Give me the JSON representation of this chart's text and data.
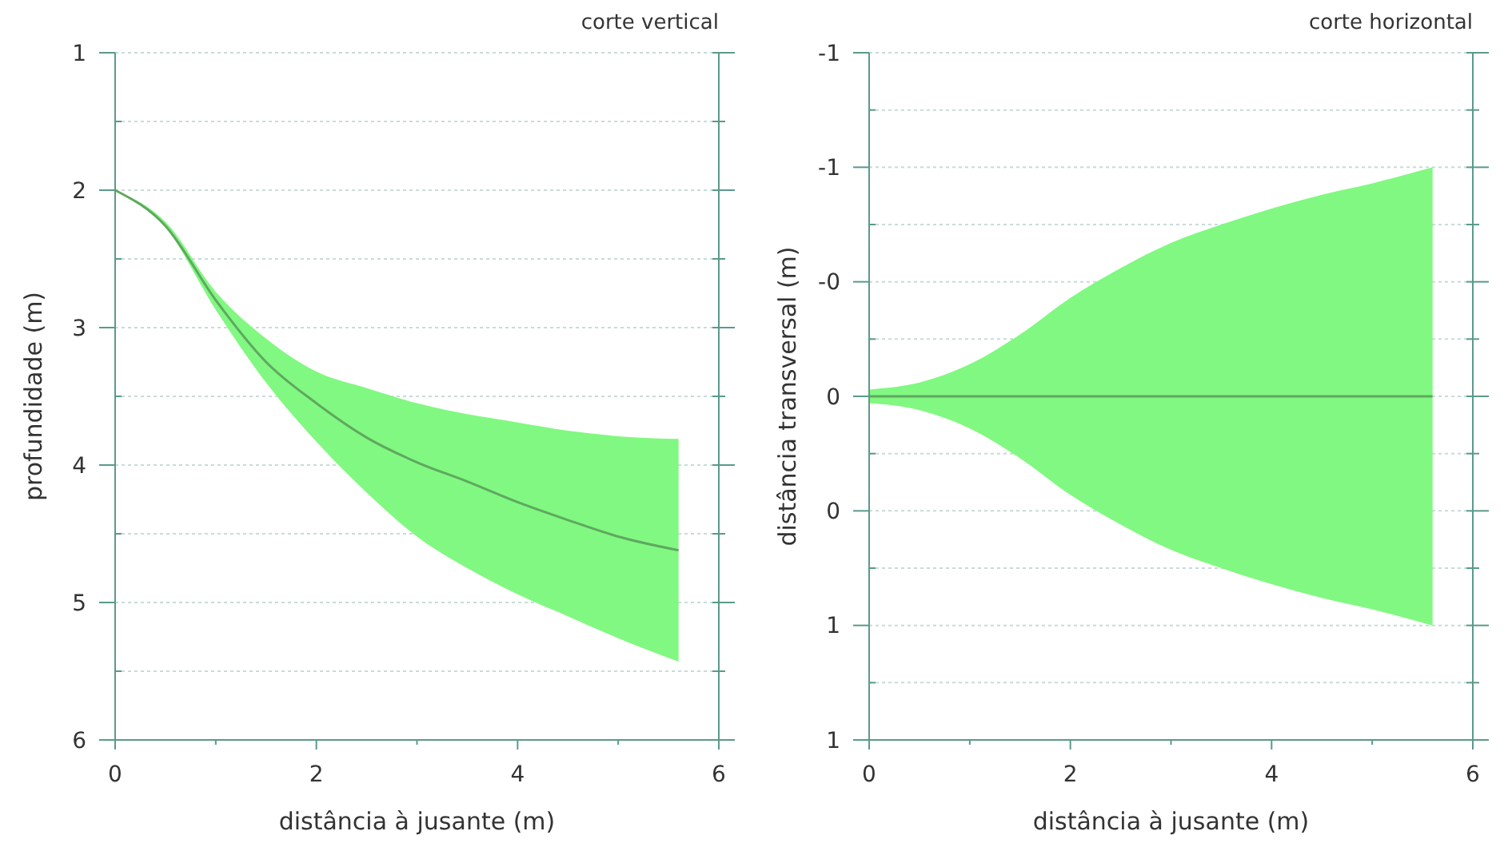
{
  "chart_data": [
    {
      "type": "line",
      "title": "corte vertical",
      "xlabel": "distância à jusante (m)",
      "ylabel": "profundidade (m)",
      "x": [
        0,
        0.5,
        1,
        1.5,
        2,
        2.5,
        3,
        3.5,
        4,
        4.5,
        5,
        5.6
      ],
      "xlim": [
        0,
        6
      ],
      "xticks": [
        0,
        {
          "value": 1,
          "label": null
        },
        2,
        {
          "value": 3,
          "label": null
        },
        4,
        {
          "value": 5,
          "label": null
        },
        6
      ],
      "ylim": [
        6,
        1
      ],
      "yticks": [
        1,
        {
          "value": 1.5,
          "label": null
        },
        2,
        {
          "value": 2.5,
          "label": null
        },
        3,
        {
          "value": 3.5,
          "label": null
        },
        4,
        {
          "value": 4.5,
          "label": null
        },
        5,
        {
          "value": 5.5,
          "label": null
        },
        6
      ],
      "grid": "y",
      "line_style": "solid",
      "series": [
        {
          "color": "#5fa85f",
          "values": [
            2.0,
            2.26,
            2.8,
            3.25,
            3.55,
            3.8,
            3.98,
            4.12,
            4.27,
            4.4,
            4.52,
            4.62
          ],
          "upper": [
            2.0,
            2.23,
            2.74,
            3.08,
            3.32,
            3.44,
            3.55,
            3.63,
            3.69,
            3.75,
            3.79,
            3.81
          ],
          "lower": [
            2.0,
            2.27,
            2.87,
            3.4,
            3.83,
            4.2,
            4.52,
            4.75,
            4.94,
            5.1,
            5.26,
            5.43
          ]
        }
      ]
    },
    {
      "type": "line",
      "title": "corte horizontal",
      "xlabel": "distância à jusante (m)",
      "ylabel": "distância transversal (m)",
      "x": [
        0,
        0.5,
        1,
        1.5,
        2,
        2.5,
        3,
        3.5,
        4,
        4.5,
        5,
        5.6
      ],
      "xlim": [
        0,
        6
      ],
      "xticks": [
        0,
        {
          "value": 1,
          "label": null
        },
        2,
        {
          "value": 3,
          "label": null
        },
        4,
        {
          "value": 5,
          "label": null
        },
        6
      ],
      "ylim": [
        1.5,
        -1.5
      ],
      "yticks": [
        {
          "value": -1.5,
          "label": "-1"
        },
        {
          "value": -1.25,
          "label": null
        },
        {
          "value": -1,
          "label": "-1"
        },
        {
          "value": -0.75,
          "label": null
        },
        {
          "value": -0.5,
          "label": "-0"
        },
        {
          "value": -0.25,
          "label": null
        },
        0,
        {
          "value": 0.25,
          "label": null
        },
        {
          "value": 0.5,
          "label": "0"
        },
        {
          "value": 0.75,
          "label": null
        },
        1,
        {
          "value": 1.25,
          "label": null
        },
        {
          "value": 1.5,
          "label": "1"
        }
      ],
      "grid": "y",
      "line_style": "solid",
      "series": [
        {
          "color": "#5fa85f",
          "values": [
            0,
            0,
            0,
            0,
            0,
            0,
            0,
            0,
            0,
            0,
            0,
            0
          ],
          "upper": [
            -0.03,
            -0.06,
            -0.14,
            -0.27,
            -0.43,
            -0.56,
            -0.67,
            -0.75,
            -0.82,
            -0.88,
            -0.93,
            -1.0
          ],
          "lower": [
            0.03,
            0.06,
            0.14,
            0.27,
            0.43,
            0.56,
            0.67,
            0.75,
            0.82,
            0.88,
            0.93,
            1.0
          ]
        }
      ]
    }
  ]
}
